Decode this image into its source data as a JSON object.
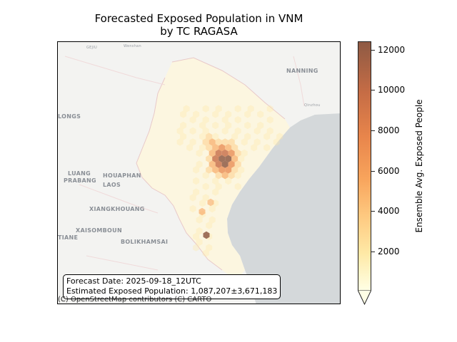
{
  "title_line1": "Forecasted Exposed Population in VNM",
  "title_line2": "by TC RAGASA",
  "info": {
    "forecast_date": "Forecast Date: 2025-09-18_12UTC",
    "estimated_population": "Estimated Exposed Population: 1,087,207±3,671,183"
  },
  "attribution": "(C) OpenStreetMap contributors (C) CARTO",
  "colorbar": {
    "label": "Ensemble Avg. Exposed People",
    "ticks": [
      "2000",
      "4000",
      "6000",
      "8000",
      "10000",
      "12000"
    ],
    "colors": [
      "#ffffe5",
      "#fee9a6",
      "#fec980",
      "#f8a45c",
      "#e8854b",
      "#c56c45",
      "#8e5a44"
    ]
  },
  "places": {
    "luang_prabang_1": "LUANG",
    "luang_prabang_2": "PRABANG",
    "houaphan": "HOUAPHAN",
    "laos": "LAOS",
    "xiangkhouang": "XIANGKHOUANG",
    "xaisomboun": "XAISOMBOUN",
    "bolikhamsai": "BOLIKHAMSAI",
    "tiane": "TIANE",
    "nanning": "NANNING",
    "longs": "LONGS",
    "qinzhou": "Qinzhou",
    "wenshan": "Wenshan",
    "gejiu": "GEJIU"
  }
}
